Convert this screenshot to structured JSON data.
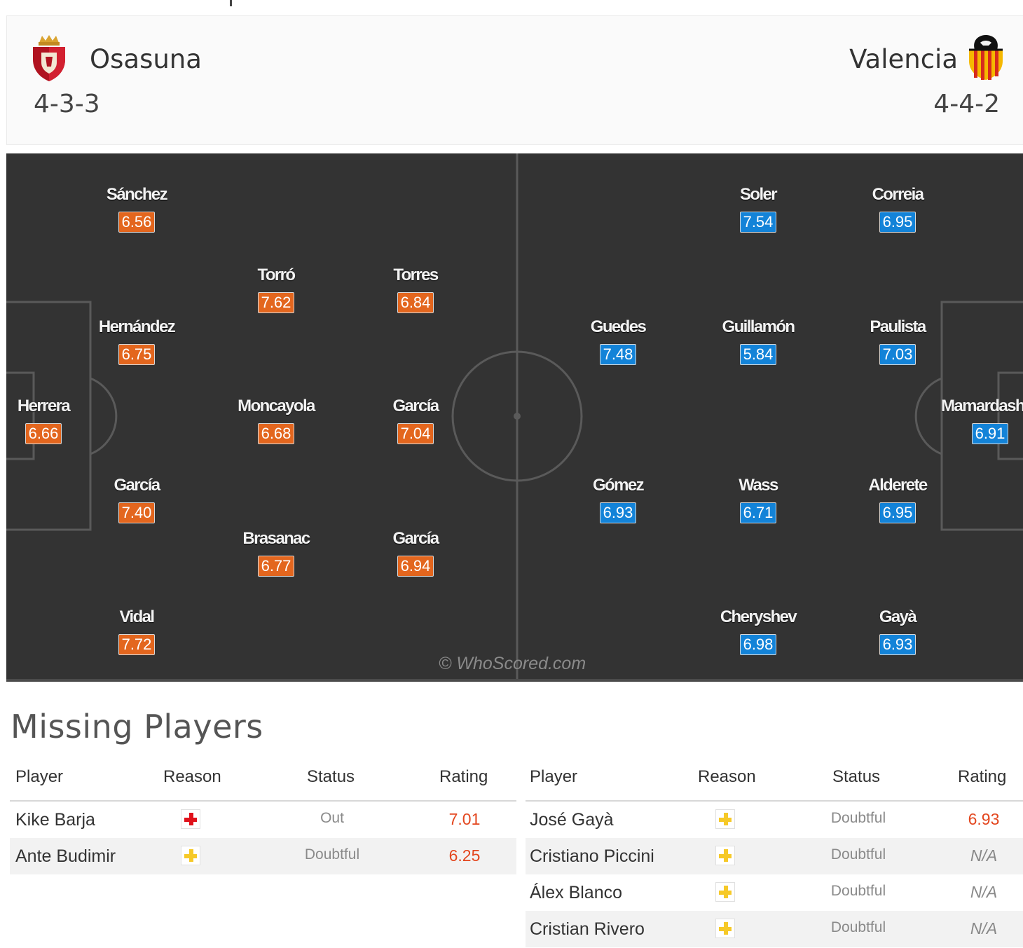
{
  "header": {
    "home": {
      "name": "Osasuna",
      "formation": "4-3-3"
    },
    "away": {
      "name": "Valencia",
      "formation": "4-4-2"
    }
  },
  "lineup": {
    "home": [
      {
        "name": "Sánchez",
        "rating": "6.56"
      },
      {
        "name": "Torró",
        "rating": "7.62"
      },
      {
        "name": "Torres",
        "rating": "6.84"
      },
      {
        "name": "Hernández",
        "rating": "6.75"
      },
      {
        "name": "Herrera",
        "rating": "6.66"
      },
      {
        "name": "Moncayola",
        "rating": "6.68"
      },
      {
        "name": "García",
        "rating": "7.04"
      },
      {
        "name": "García",
        "rating": "7.40"
      },
      {
        "name": "Brasanac",
        "rating": "6.77"
      },
      {
        "name": "García",
        "rating": "6.94"
      },
      {
        "name": "Vidal",
        "rating": "7.72"
      }
    ],
    "away": [
      {
        "name": "Soler",
        "rating": "7.54"
      },
      {
        "name": "Correia",
        "rating": "6.95"
      },
      {
        "name": "Guedes",
        "rating": "7.48"
      },
      {
        "name": "Guillamón",
        "rating": "5.84"
      },
      {
        "name": "Paulista",
        "rating": "7.03"
      },
      {
        "name": "Mamardashvili",
        "rating": "6.91"
      },
      {
        "name": "Gómez",
        "rating": "6.93"
      },
      {
        "name": "Wass",
        "rating": "6.71"
      },
      {
        "name": "Alderete",
        "rating": "6.95"
      },
      {
        "name": "Cheryshev",
        "rating": "6.98"
      },
      {
        "name": "Gayà",
        "rating": "6.93"
      }
    ]
  },
  "watermark": "© WhoScored.com",
  "missing": {
    "title": "Missing Players",
    "columns": [
      "Player",
      "Reason",
      "Status",
      "Rating"
    ],
    "home": [
      {
        "player": "Kike Barja",
        "reason": "injury-red-cross-icon",
        "status": "Out",
        "rating": "7.01"
      },
      {
        "player": "Ante Budimir",
        "reason": "doubtful-yellow-cross-icon",
        "status": "Doubtful",
        "rating": "6.25"
      }
    ],
    "away": [
      {
        "player": "José Gayà",
        "reason": "doubtful-yellow-cross-icon",
        "status": "Doubtful",
        "rating": "6.93"
      },
      {
        "player": "Cristiano Piccini",
        "reason": "doubtful-yellow-cross-icon",
        "status": "Doubtful",
        "rating": "N/A"
      },
      {
        "player": "Álex Blanco",
        "reason": "doubtful-yellow-cross-icon",
        "status": "Doubtful",
        "rating": "N/A"
      },
      {
        "player": "Cristian Rivero",
        "reason": "doubtful-yellow-cross-icon",
        "status": "Doubtful",
        "rating": "N/A"
      }
    ]
  },
  "colors": {
    "home_rating": "#e3661e",
    "away_rating": "#1383d8",
    "pitch": "#333333",
    "injury": "#e0121b",
    "doubtful": "#f6c928",
    "missing_rating": "#e3461e"
  }
}
